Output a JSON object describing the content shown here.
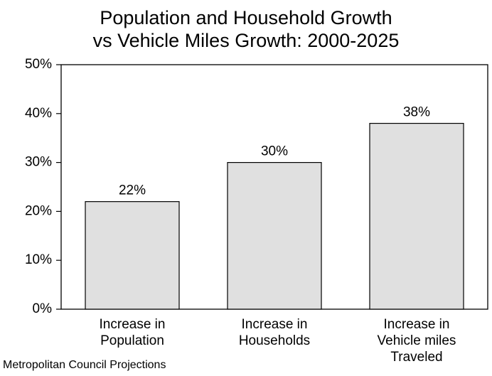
{
  "chart_data": {
    "type": "bar",
    "title": [
      "Population and Household Growth",
      "vs Vehicle Miles Growth: 2000-2025"
    ],
    "categories": [
      [
        "Increase in",
        "Population"
      ],
      [
        "Increase in",
        "Households"
      ],
      [
        "Increase in",
        "Vehicle miles",
        "Traveled"
      ]
    ],
    "values": [
      22,
      30,
      38
    ],
    "data_labels": [
      "22%",
      "30%",
      "38%"
    ],
    "y_ticks": [
      "0%",
      "10%",
      "20%",
      "30%",
      "40%",
      "50%"
    ],
    "ylim": [
      0,
      50
    ],
    "grid": false,
    "legend": "none",
    "bar_color": "#e0e0e0",
    "bar_stroke": "#000000",
    "source": "Metropolitan Council Projections"
  }
}
